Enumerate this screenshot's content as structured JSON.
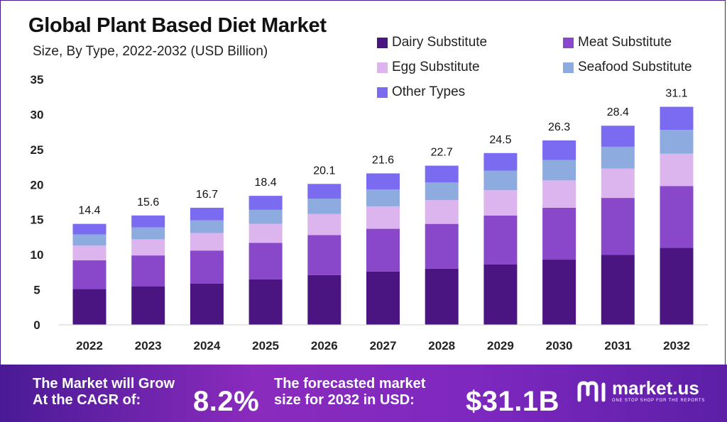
{
  "header": {
    "title": "Global Plant Based Diet Market",
    "subtitle": "Size, By Type, 2022-2032 (USD Billion)"
  },
  "legend": [
    {
      "label": "Dairy Substitute",
      "color": "#4b1581"
    },
    {
      "label": "Meat Substitute",
      "color": "#8947c9"
    },
    {
      "label": "Egg Substitute",
      "color": "#dcb5ef"
    },
    {
      "label": "Seafood Substitute",
      "color": "#8eabdf"
    },
    {
      "label": "Other Types",
      "color": "#7a6bf0"
    }
  ],
  "chart_data": {
    "type": "bar",
    "stacked": true,
    "title": "Global Plant Based Diet Market",
    "subtitle": "Size, By Type, 2022-2032 (USD Billion)",
    "categories": [
      "2022",
      "2023",
      "2024",
      "2025",
      "2026",
      "2027",
      "2028",
      "2029",
      "2030",
      "2031",
      "2032"
    ],
    "totals": [
      14.4,
      15.6,
      16.7,
      18.4,
      20.1,
      21.6,
      22.7,
      24.5,
      26.3,
      28.4,
      31.1
    ],
    "total_labels": [
      "14.4",
      "15.6",
      "16.7",
      "18.4",
      "20.1",
      "21.6",
      "22.7",
      "24.5",
      "26.3",
      "28.4",
      "31.1"
    ],
    "series": [
      {
        "name": "Dairy Substitute",
        "color": "#4b1581",
        "values": [
          5.1,
          5.5,
          5.9,
          6.5,
          7.1,
          7.6,
          8.0,
          8.6,
          9.3,
          10.0,
          11.0
        ]
      },
      {
        "name": "Meat Substitute",
        "color": "#8947c9",
        "values": [
          4.1,
          4.4,
          4.7,
          5.2,
          5.7,
          6.1,
          6.4,
          7.0,
          7.4,
          8.1,
          8.8
        ]
      },
      {
        "name": "Egg Substitute",
        "color": "#dcb5ef",
        "values": [
          2.1,
          2.3,
          2.5,
          2.7,
          3.0,
          3.2,
          3.4,
          3.6,
          3.9,
          4.2,
          4.6
        ]
      },
      {
        "name": "Seafood Substitute",
        "color": "#8eabdf",
        "values": [
          1.6,
          1.7,
          1.8,
          2.0,
          2.2,
          2.4,
          2.5,
          2.8,
          2.9,
          3.1,
          3.4
        ]
      },
      {
        "name": "Other Types",
        "color": "#7a6bf0",
        "values": [
          1.5,
          1.7,
          1.8,
          2.0,
          2.1,
          2.3,
          2.4,
          2.5,
          2.8,
          3.0,
          3.3
        ]
      }
    ],
    "yticks": [
      0,
      5,
      10,
      15,
      20,
      25,
      30,
      35
    ],
    "ylim": [
      0,
      35
    ],
    "xlabel": "",
    "ylabel": "",
    "grid": false,
    "legend_position": "top-right"
  },
  "banner": {
    "cagr_line1": "The Market will Grow",
    "cagr_line2": "At the CAGR of:",
    "cagr_value": "8.2%",
    "forecast_line1": "The forecasted market",
    "forecast_line2": "size for 2032 in USD:",
    "forecast_value": "$31.1B",
    "logo_name": "market.us",
    "logo_tagline": "ONE STOP SHOP FOR THE REPORTS"
  }
}
